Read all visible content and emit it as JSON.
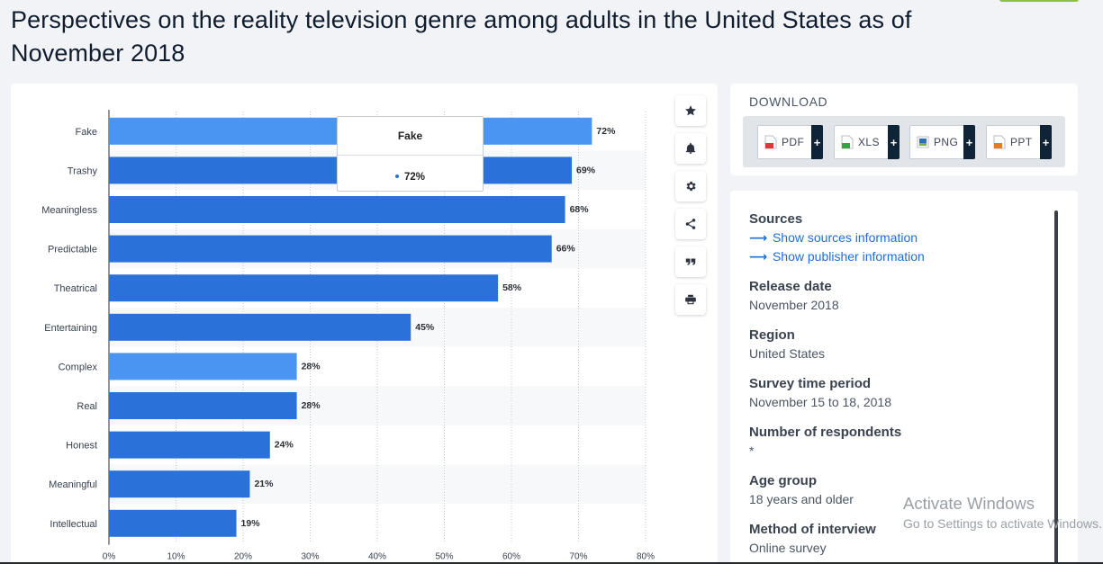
{
  "title": "Perspectives on the reality television genre among adults in the United States as of November 2018",
  "chart_data": {
    "type": "bar",
    "orientation": "horizontal",
    "categories": [
      "Fake",
      "Trashy",
      "Meaningless",
      "Predictable",
      "Theatrical",
      "Entertaining",
      "Complex",
      "Real",
      "Honest",
      "Meaningful",
      "Intellectual"
    ],
    "values": [
      72,
      69,
      68,
      66,
      58,
      45,
      28,
      28,
      24,
      21,
      19
    ],
    "value_labels": [
      "72%",
      "69%",
      "68%",
      "66%",
      "58%",
      "45%",
      "28%",
      "28%",
      "24%",
      "21%",
      "19%"
    ],
    "x_ticks": [
      "0%",
      "10%",
      "20%",
      "30%",
      "40%",
      "50%",
      "60%",
      "70%",
      "80%"
    ],
    "xlim": [
      0,
      80
    ],
    "unit": "%",
    "bar_color": "#2a72d9",
    "highlight_color": "#4a94f2",
    "highlighted": [
      "Fake",
      "Complex"
    ],
    "grid": true
  },
  "tooltip": {
    "title": "Fake",
    "value": "72%"
  },
  "toolbar": [
    "star-icon",
    "bell-icon",
    "gear-icon",
    "share-icon",
    "quote-icon",
    "print-icon"
  ],
  "download": {
    "title": "DOWNLOAD",
    "buttons": [
      {
        "label": "PDF",
        "icon": "pdf-file-icon",
        "color": "#d63b3b"
      },
      {
        "label": "XLS",
        "icon": "xls-file-icon",
        "color": "#3aa046"
      },
      {
        "label": "PNG",
        "icon": "png-file-icon",
        "color": "#2f6fb8"
      },
      {
        "label": "PPT",
        "icon": "ppt-file-icon",
        "color": "#e07b26"
      }
    ],
    "plus": "+"
  },
  "info": {
    "sources_heading": "Sources",
    "show_sources": "Show sources information",
    "show_publisher": "Show publisher information",
    "release_heading": "Release date",
    "release_value": "November 2018",
    "region_heading": "Region",
    "region_value": "United States",
    "survey_heading": "Survey time period",
    "survey_value": "November 15 to 18, 2018",
    "respondents_heading": "Number of respondents",
    "respondents_value": "*",
    "age_heading": "Age group",
    "age_value": "18 years and older",
    "method_heading": "Method of interview",
    "method_value": "Online survey"
  },
  "watermark": {
    "line1": "Activate Windows",
    "line2": "Go to Settings to activate Windows."
  }
}
